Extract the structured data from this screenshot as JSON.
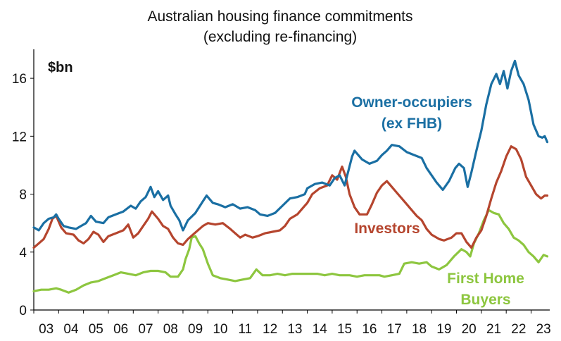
{
  "chart_data": {
    "type": "line",
    "title": "Australian housing finance commitments",
    "subtitle": "(excluding re-financing)",
    "unit_label": "$bn",
    "ylim": [
      0,
      18
    ],
    "y_ticks": [
      "0",
      "4",
      "8",
      "12",
      "16"
    ],
    "x_ticks": [
      "03",
      "04",
      "05",
      "06",
      "07",
      "08",
      "09",
      "10",
      "11",
      "12",
      "13",
      "14",
      "15",
      "16",
      "17",
      "18",
      "19",
      "20",
      "21",
      "22",
      "23"
    ],
    "xlim": [
      2003.0,
      2023.75
    ],
    "grid": false,
    "legend": "inline labels",
    "series": [
      {
        "name": "Owner-occupiers (ex FHB)",
        "label_lines": [
          "Owner-occupiers",
          "(ex FHB)"
        ],
        "color": "#1a6fa3",
        "points": [
          [
            2003.0,
            5.7
          ],
          [
            2003.2,
            5.5
          ],
          [
            2003.4,
            6.0
          ],
          [
            2003.6,
            6.3
          ],
          [
            2003.8,
            6.4
          ],
          [
            2003.9,
            6.6
          ],
          [
            2004.0,
            6.3
          ],
          [
            2004.2,
            5.8
          ],
          [
            2004.4,
            5.7
          ],
          [
            2004.7,
            5.6
          ],
          [
            2004.9,
            5.8
          ],
          [
            2005.1,
            6.0
          ],
          [
            2005.3,
            6.5
          ],
          [
            2005.5,
            6.1
          ],
          [
            2005.8,
            6.0
          ],
          [
            2006.0,
            6.4
          ],
          [
            2006.3,
            6.6
          ],
          [
            2006.6,
            6.8
          ],
          [
            2006.9,
            7.2
          ],
          [
            2007.1,
            7.0
          ],
          [
            2007.3,
            7.5
          ],
          [
            2007.5,
            7.8
          ],
          [
            2007.7,
            8.5
          ],
          [
            2007.85,
            7.8
          ],
          [
            2008.0,
            8.2
          ],
          [
            2008.2,
            7.6
          ],
          [
            2008.4,
            7.9
          ],
          [
            2008.5,
            7.2
          ],
          [
            2008.7,
            6.6
          ],
          [
            2008.85,
            6.2
          ],
          [
            2009.0,
            5.5
          ],
          [
            2009.2,
            6.2
          ],
          [
            2009.5,
            6.7
          ],
          [
            2009.8,
            7.5
          ],
          [
            2009.95,
            7.9
          ],
          [
            2010.2,
            7.4
          ],
          [
            2010.4,
            7.3
          ],
          [
            2010.7,
            7.1
          ],
          [
            2011.0,
            7.3
          ],
          [
            2011.3,
            7.0
          ],
          [
            2011.6,
            7.1
          ],
          [
            2011.9,
            6.9
          ],
          [
            2012.1,
            6.6
          ],
          [
            2012.4,
            6.5
          ],
          [
            2012.7,
            6.7
          ],
          [
            2013.0,
            7.2
          ],
          [
            2013.3,
            7.7
          ],
          [
            2013.6,
            7.8
          ],
          [
            2013.9,
            8.0
          ],
          [
            2014.0,
            8.4
          ],
          [
            2014.3,
            8.7
          ],
          [
            2014.6,
            8.8
          ],
          [
            2014.9,
            8.6
          ],
          [
            2015.1,
            9.1
          ],
          [
            2015.3,
            9.3
          ],
          [
            2015.5,
            8.6
          ],
          [
            2015.65,
            9.6
          ],
          [
            2015.8,
            10.6
          ],
          [
            2015.9,
            11.0
          ],
          [
            2016.2,
            10.4
          ],
          [
            2016.5,
            10.1
          ],
          [
            2016.8,
            10.3
          ],
          [
            2017.0,
            10.7
          ],
          [
            2017.2,
            11.0
          ],
          [
            2017.4,
            11.4
          ],
          [
            2017.7,
            11.3
          ],
          [
            2018.0,
            10.9
          ],
          [
            2018.3,
            10.7
          ],
          [
            2018.6,
            10.5
          ],
          [
            2018.8,
            9.8
          ],
          [
            2019.0,
            9.3
          ],
          [
            2019.2,
            8.8
          ],
          [
            2019.45,
            8.3
          ],
          [
            2019.7,
            8.9
          ],
          [
            2019.95,
            9.8
          ],
          [
            2020.1,
            10.1
          ],
          [
            2020.3,
            9.8
          ],
          [
            2020.45,
            8.5
          ],
          [
            2020.6,
            9.5
          ],
          [
            2020.8,
            11.0
          ],
          [
            2021.0,
            12.4
          ],
          [
            2021.2,
            14.2
          ],
          [
            2021.4,
            15.6
          ],
          [
            2021.6,
            16.3
          ],
          [
            2021.75,
            15.6
          ],
          [
            2021.9,
            16.5
          ],
          [
            2022.05,
            15.3
          ],
          [
            2022.2,
            16.5
          ],
          [
            2022.35,
            17.2
          ],
          [
            2022.5,
            16.2
          ],
          [
            2022.7,
            15.6
          ],
          [
            2022.9,
            14.5
          ],
          [
            2023.1,
            12.8
          ],
          [
            2023.3,
            12.0
          ],
          [
            2023.45,
            11.9
          ],
          [
            2023.55,
            12.0
          ],
          [
            2023.65,
            11.6
          ]
        ]
      },
      {
        "name": "Investors",
        "label_lines": [
          "Investors"
        ],
        "color": "#b5452e",
        "points": [
          [
            2003.0,
            4.3
          ],
          [
            2003.2,
            4.6
          ],
          [
            2003.4,
            4.9
          ],
          [
            2003.6,
            5.6
          ],
          [
            2003.75,
            6.3
          ],
          [
            2003.9,
            6.5
          ],
          [
            2004.1,
            5.7
          ],
          [
            2004.3,
            5.3
          ],
          [
            2004.6,
            5.2
          ],
          [
            2004.8,
            4.8
          ],
          [
            2005.0,
            4.6
          ],
          [
            2005.2,
            4.9
          ],
          [
            2005.4,
            5.4
          ],
          [
            2005.6,
            5.2
          ],
          [
            2005.8,
            4.7
          ],
          [
            2006.0,
            5.1
          ],
          [
            2006.3,
            5.3
          ],
          [
            2006.6,
            5.5
          ],
          [
            2006.8,
            5.9
          ],
          [
            2007.0,
            5.0
          ],
          [
            2007.2,
            5.3
          ],
          [
            2007.4,
            5.8
          ],
          [
            2007.6,
            6.3
          ],
          [
            2007.75,
            6.8
          ],
          [
            2008.0,
            6.3
          ],
          [
            2008.2,
            5.8
          ],
          [
            2008.4,
            5.6
          ],
          [
            2008.6,
            5.0
          ],
          [
            2008.8,
            4.6
          ],
          [
            2009.0,
            4.5
          ],
          [
            2009.2,
            4.9
          ],
          [
            2009.4,
            5.2
          ],
          [
            2009.6,
            5.5
          ],
          [
            2009.8,
            5.8
          ],
          [
            2010.0,
            6.0
          ],
          [
            2010.3,
            5.9
          ],
          [
            2010.6,
            6.0
          ],
          [
            2010.9,
            5.6
          ],
          [
            2011.1,
            5.3
          ],
          [
            2011.3,
            5.0
          ],
          [
            2011.5,
            5.2
          ],
          [
            2011.8,
            5.0
          ],
          [
            2012.0,
            5.1
          ],
          [
            2012.3,
            5.3
          ],
          [
            2012.6,
            5.4
          ],
          [
            2012.9,
            5.5
          ],
          [
            2013.1,
            5.8
          ],
          [
            2013.3,
            6.3
          ],
          [
            2013.6,
            6.6
          ],
          [
            2013.8,
            7.0
          ],
          [
            2014.0,
            7.4
          ],
          [
            2014.2,
            8.0
          ],
          [
            2014.5,
            8.4
          ],
          [
            2014.8,
            8.6
          ],
          [
            2015.0,
            9.3
          ],
          [
            2015.2,
            9.0
          ],
          [
            2015.4,
            9.9
          ],
          [
            2015.55,
            9.2
          ],
          [
            2015.7,
            8.0
          ],
          [
            2015.9,
            7.1
          ],
          [
            2016.1,
            6.6
          ],
          [
            2016.4,
            6.6
          ],
          [
            2016.6,
            7.3
          ],
          [
            2016.8,
            8.1
          ],
          [
            2017.0,
            8.6
          ],
          [
            2017.2,
            8.9
          ],
          [
            2017.4,
            8.5
          ],
          [
            2017.6,
            8.1
          ],
          [
            2017.8,
            7.7
          ],
          [
            2018.0,
            7.3
          ],
          [
            2018.2,
            6.9
          ],
          [
            2018.4,
            6.5
          ],
          [
            2018.6,
            6.2
          ],
          [
            2018.8,
            5.6
          ],
          [
            2019.0,
            5.2
          ],
          [
            2019.3,
            4.9
          ],
          [
            2019.5,
            4.8
          ],
          [
            2019.8,
            5.0
          ],
          [
            2020.0,
            5.3
          ],
          [
            2020.2,
            5.3
          ],
          [
            2020.4,
            4.7
          ],
          [
            2020.6,
            4.3
          ],
          [
            2020.8,
            5.0
          ],
          [
            2021.0,
            5.5
          ],
          [
            2021.2,
            6.5
          ],
          [
            2021.4,
            7.7
          ],
          [
            2021.6,
            8.8
          ],
          [
            2021.8,
            9.6
          ],
          [
            2022.0,
            10.6
          ],
          [
            2022.2,
            11.3
          ],
          [
            2022.4,
            11.1
          ],
          [
            2022.6,
            10.4
          ],
          [
            2022.8,
            9.2
          ],
          [
            2023.0,
            8.6
          ],
          [
            2023.2,
            8.0
          ],
          [
            2023.4,
            7.7
          ],
          [
            2023.55,
            7.9
          ],
          [
            2023.65,
            7.9
          ]
        ]
      },
      {
        "name": "First Home Buyers",
        "label_lines": [
          "First Home",
          "Buyers"
        ],
        "color": "#8dc63f",
        "points": [
          [
            2003.0,
            1.3
          ],
          [
            2003.3,
            1.4
          ],
          [
            2003.6,
            1.4
          ],
          [
            2003.9,
            1.5
          ],
          [
            2004.1,
            1.4
          ],
          [
            2004.4,
            1.2
          ],
          [
            2004.7,
            1.4
          ],
          [
            2005.0,
            1.7
          ],
          [
            2005.3,
            1.9
          ],
          [
            2005.6,
            2.0
          ],
          [
            2005.9,
            2.2
          ],
          [
            2006.2,
            2.4
          ],
          [
            2006.5,
            2.6
          ],
          [
            2006.8,
            2.5
          ],
          [
            2007.1,
            2.4
          ],
          [
            2007.4,
            2.6
          ],
          [
            2007.7,
            2.7
          ],
          [
            2008.0,
            2.7
          ],
          [
            2008.3,
            2.6
          ],
          [
            2008.5,
            2.3
          ],
          [
            2008.8,
            2.3
          ],
          [
            2009.0,
            2.8
          ],
          [
            2009.1,
            3.5
          ],
          [
            2009.25,
            4.2
          ],
          [
            2009.35,
            5.0
          ],
          [
            2009.5,
            5.1
          ],
          [
            2009.65,
            4.6
          ],
          [
            2009.8,
            4.2
          ],
          [
            2010.0,
            3.2
          ],
          [
            2010.2,
            2.4
          ],
          [
            2010.5,
            2.2
          ],
          [
            2010.8,
            2.1
          ],
          [
            2011.1,
            2.0
          ],
          [
            2011.4,
            2.1
          ],
          [
            2011.7,
            2.2
          ],
          [
            2011.95,
            2.8
          ],
          [
            2012.2,
            2.4
          ],
          [
            2012.5,
            2.4
          ],
          [
            2012.8,
            2.5
          ],
          [
            2013.1,
            2.4
          ],
          [
            2013.4,
            2.5
          ],
          [
            2013.8,
            2.5
          ],
          [
            2014.1,
            2.5
          ],
          [
            2014.4,
            2.5
          ],
          [
            2014.7,
            2.4
          ],
          [
            2015.0,
            2.5
          ],
          [
            2015.3,
            2.4
          ],
          [
            2015.7,
            2.4
          ],
          [
            2016.0,
            2.3
          ],
          [
            2016.3,
            2.4
          ],
          [
            2016.6,
            2.4
          ],
          [
            2016.9,
            2.4
          ],
          [
            2017.1,
            2.3
          ],
          [
            2017.4,
            2.4
          ],
          [
            2017.7,
            2.5
          ],
          [
            2017.9,
            3.2
          ],
          [
            2018.2,
            3.3
          ],
          [
            2018.5,
            3.2
          ],
          [
            2018.8,
            3.3
          ],
          [
            2019.0,
            3.0
          ],
          [
            2019.3,
            2.8
          ],
          [
            2019.6,
            3.1
          ],
          [
            2019.9,
            3.7
          ],
          [
            2020.2,
            4.2
          ],
          [
            2020.4,
            4.0
          ],
          [
            2020.55,
            3.7
          ],
          [
            2020.7,
            4.6
          ],
          [
            2020.9,
            5.3
          ],
          [
            2021.1,
            6.2
          ],
          [
            2021.3,
            6.9
          ],
          [
            2021.5,
            6.7
          ],
          [
            2021.7,
            6.6
          ],
          [
            2021.9,
            6.0
          ],
          [
            2022.1,
            5.6
          ],
          [
            2022.3,
            5.0
          ],
          [
            2022.5,
            4.8
          ],
          [
            2022.7,
            4.5
          ],
          [
            2022.9,
            4.0
          ],
          [
            2023.1,
            3.7
          ],
          [
            2023.3,
            3.3
          ],
          [
            2023.5,
            3.8
          ],
          [
            2023.65,
            3.7
          ]
        ]
      }
    ]
  }
}
